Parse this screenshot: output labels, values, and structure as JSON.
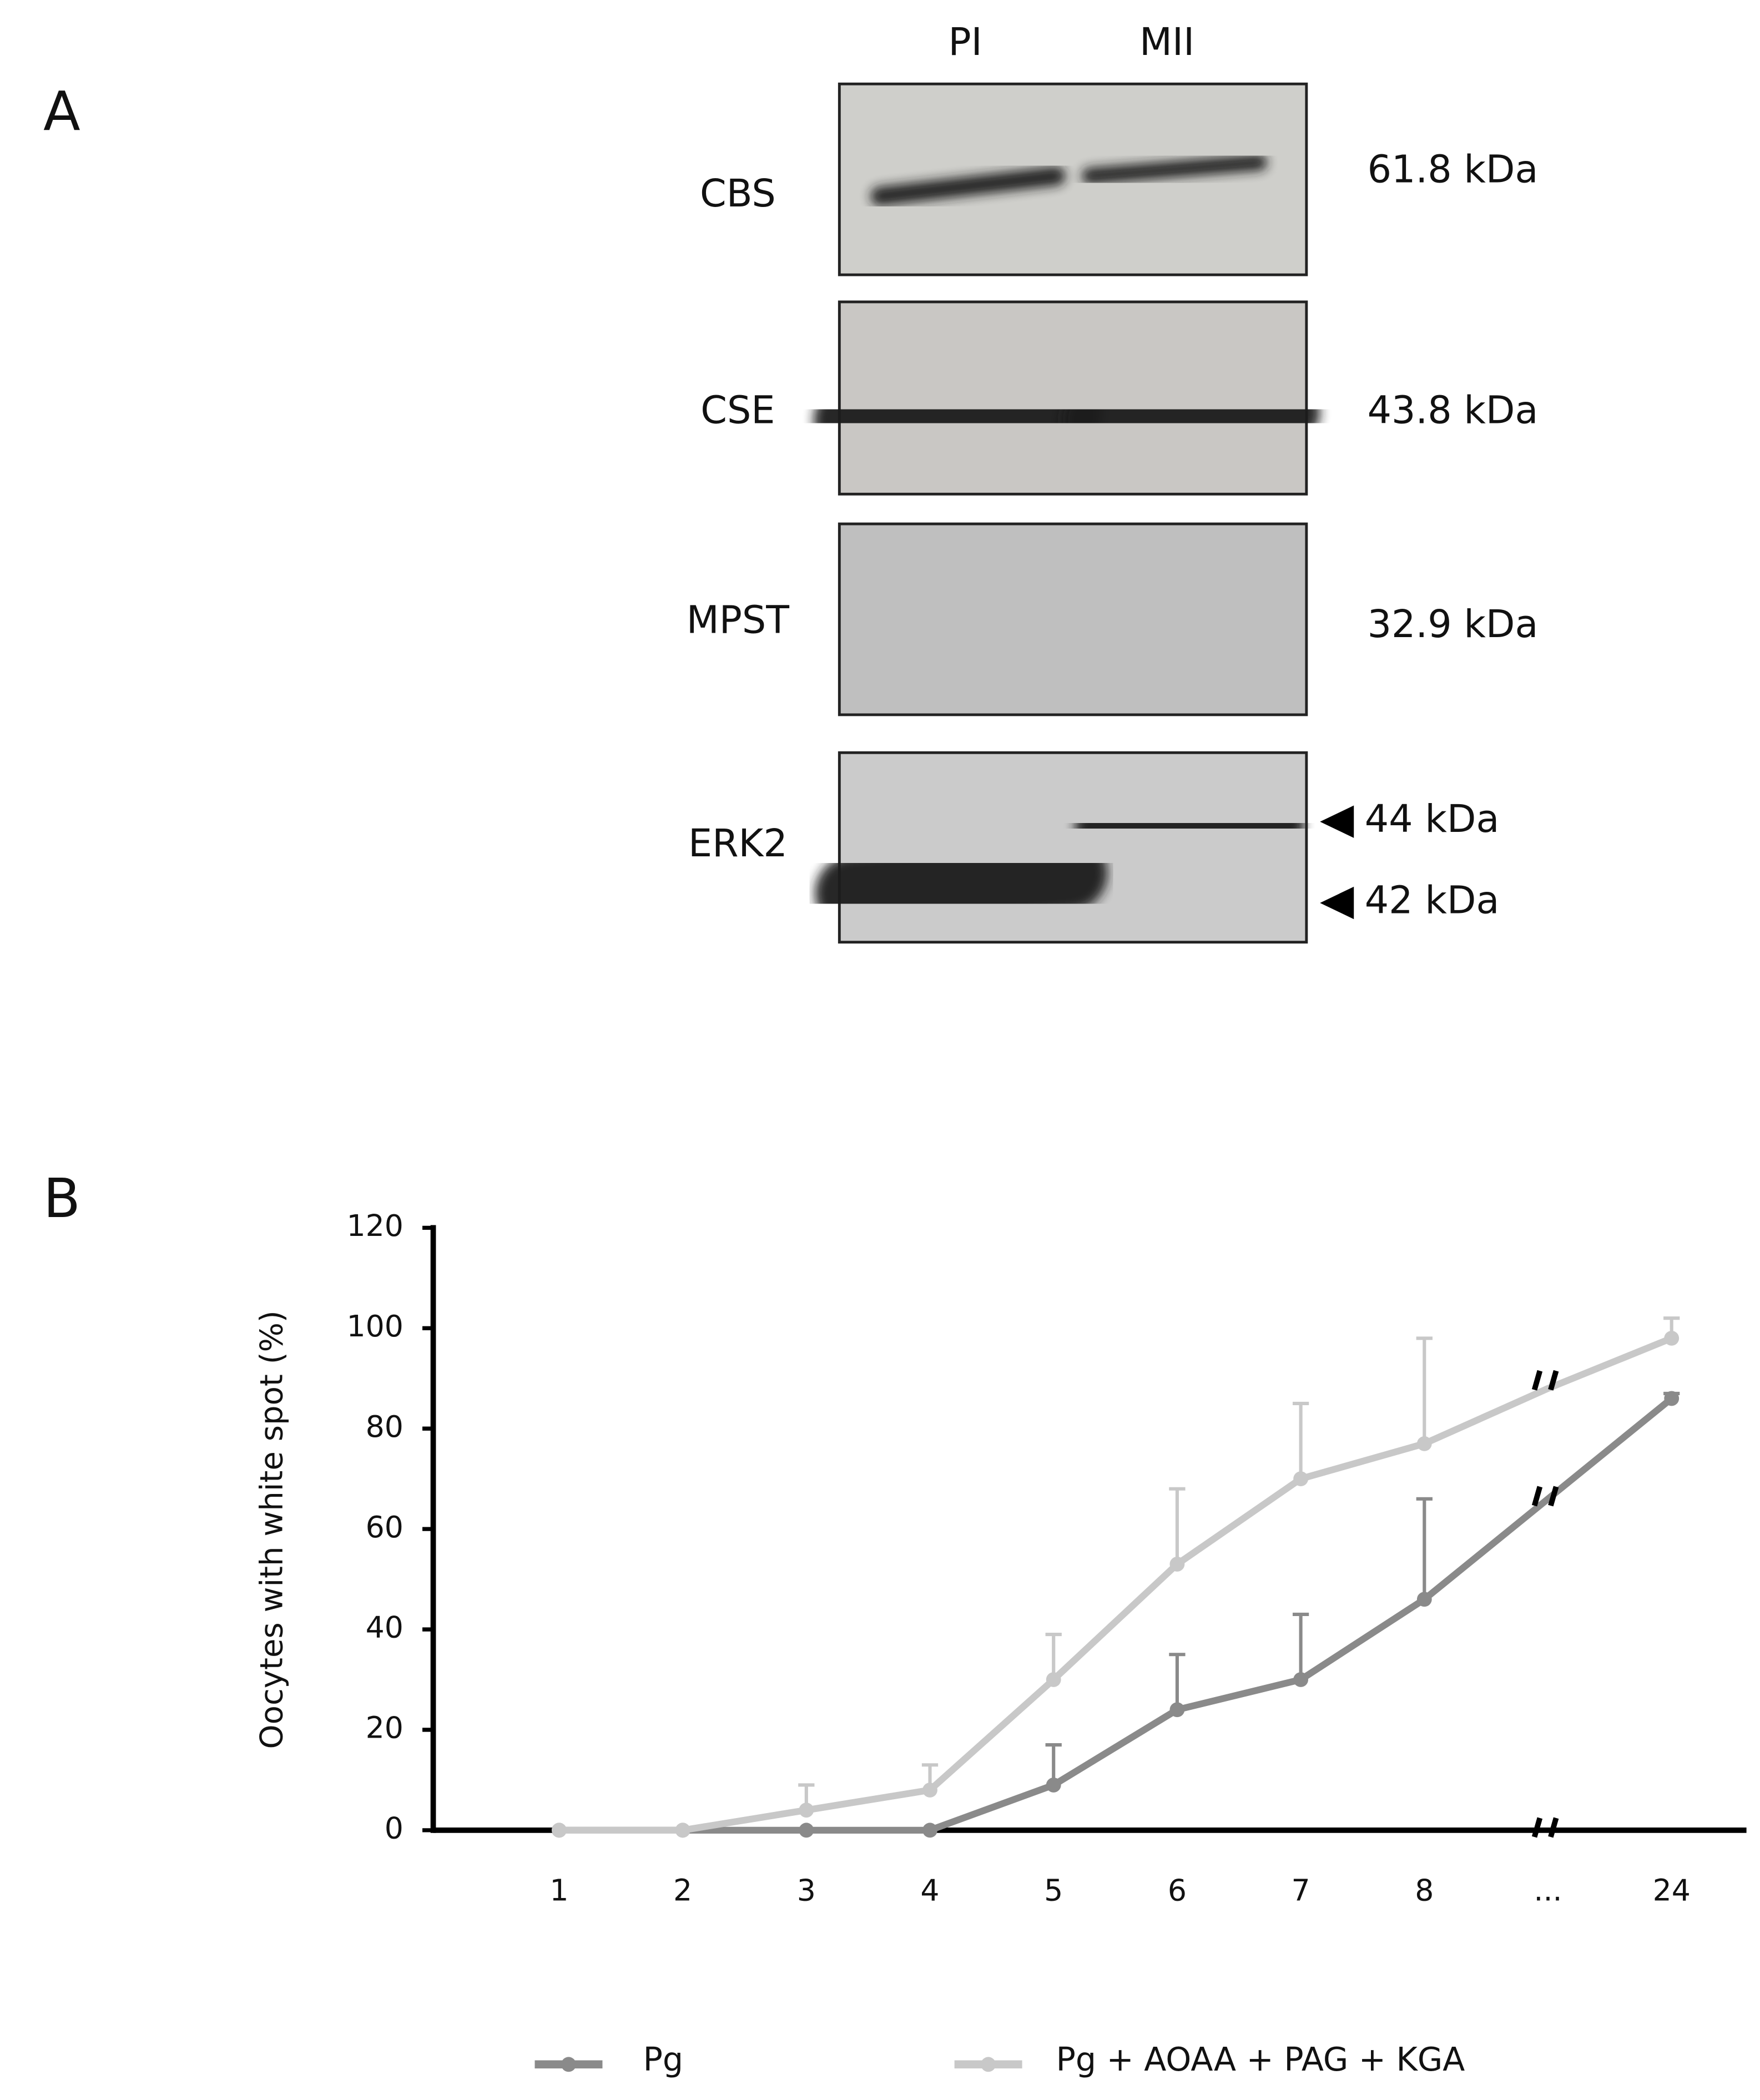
{
  "panel_a": {
    "label": "A",
    "lanes": [
      "PI",
      "MII"
    ],
    "blots": [
      {
        "protein": "CBS",
        "sizes": [
          "61.8 kDa"
        ]
      },
      {
        "protein": "CSE",
        "sizes": [
          "43.8 kDa"
        ]
      },
      {
        "protein": "MPST",
        "sizes": [
          "32.9 kDa"
        ]
      },
      {
        "protein": "ERK2",
        "sizes": [
          "44 kDa",
          "42 kDa"
        ]
      }
    ]
  },
  "chart_data": {
    "type": "line",
    "panel_label": "B",
    "y_label": "Oocytes with white spot (%)",
    "categories": [
      "1",
      "2",
      "3",
      "4",
      "5",
      "6",
      "7",
      "8",
      "...",
      "24"
    ],
    "series": [
      {
        "name": "Pg",
        "color": "#8a8a8a",
        "values": [
          0,
          0,
          0,
          0,
          9,
          24,
          30,
          46,
          66,
          86
        ],
        "errors": [
          null,
          null,
          null,
          null,
          8,
          11,
          13,
          20,
          null,
          1
        ]
      },
      {
        "name": "Pg + AOAA + PAG + KGA",
        "color": "#c8c8c8",
        "values": [
          0,
          0,
          4,
          8,
          30,
          53,
          70,
          77,
          88,
          98
        ],
        "errors": [
          null,
          null,
          5,
          5,
          9,
          15,
          15,
          21,
          null,
          4
        ]
      }
    ],
    "ylim": [
      0,
      120
    ],
    "yticks": [
      0,
      20,
      40,
      60,
      80,
      100,
      120
    ],
    "legend": "bottom"
  }
}
